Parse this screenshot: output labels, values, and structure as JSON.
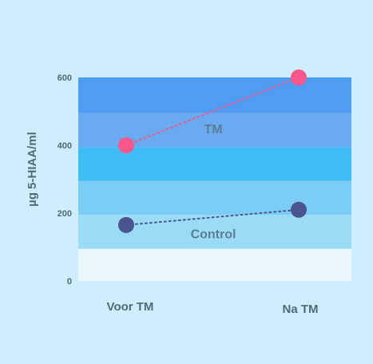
{
  "chart_data": {
    "type": "line",
    "ylabel": "µg 5-HIAA/ml",
    "ylim": [
      0,
      600
    ],
    "yticks": [
      0,
      200,
      400,
      600
    ],
    "categories": [
      "Voor TM",
      "Na TM"
    ],
    "bands": [
      {
        "from": 0,
        "to": 95,
        "color": "#eaf8fe"
      },
      {
        "from": 95,
        "to": 195,
        "color": "#9adcf5"
      },
      {
        "from": 195,
        "to": 295,
        "color": "#7ccdf5"
      },
      {
        "from": 295,
        "to": 395,
        "color": "#40bcf4"
      },
      {
        "from": 395,
        "to": 495,
        "color": "#6aaaf0"
      },
      {
        "from": 495,
        "to": 600,
        "color": "#4f9cf2"
      }
    ],
    "series": [
      {
        "name": "TM",
        "values": [
          400,
          600
        ],
        "color": "#f7578c",
        "label_at": 450
      },
      {
        "name": "Control",
        "values": [
          165,
          210
        ],
        "color": "#4a5590",
        "label_at": 140
      }
    ]
  }
}
